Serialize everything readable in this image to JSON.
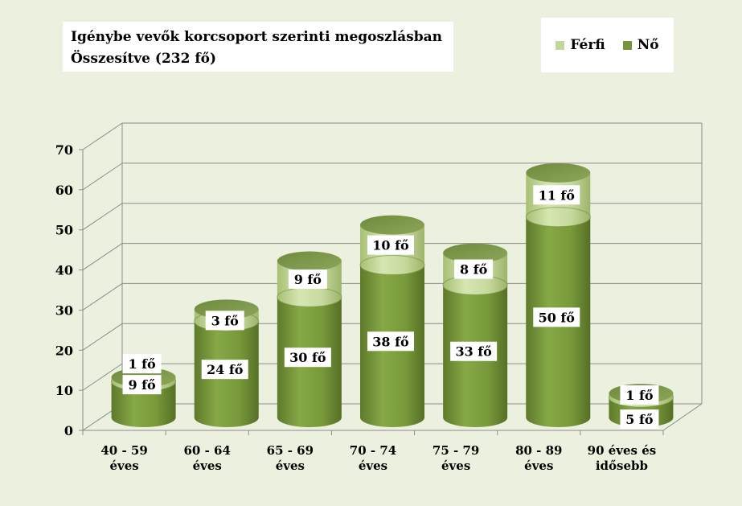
{
  "chart_data": {
    "type": "bar",
    "style": "3d-stacked-cylinder",
    "title_lines": [
      "Igénybe vevők korcsoport szerinti megoszlásban",
      "Összesítve (232 fő)"
    ],
    "categories": [
      [
        "40 - 59",
        "éves"
      ],
      [
        "60 - 64",
        "éves"
      ],
      [
        "65 - 69",
        "éves"
      ],
      [
        "70 - 74",
        "éves"
      ],
      [
        "75 - 79",
        "éves"
      ],
      [
        "80 - 89",
        "éves"
      ],
      [
        "90 éves és",
        "idősebb"
      ]
    ],
    "series": [
      {
        "name": "Nő",
        "values": [
          9,
          24,
          30,
          38,
          33,
          50,
          5
        ],
        "labels": [
          "9 fő",
          "24 fő",
          "30 fő",
          "38 fő",
          "33 fő",
          "50 fő",
          "5 fő"
        ],
        "color": "#77933c"
      },
      {
        "name": "Férfi",
        "values": [
          1,
          3,
          9,
          10,
          8,
          11,
          1
        ],
        "labels": [
          "1 fő",
          "3 fő",
          "9 fő",
          "10 fő",
          "8 fő",
          "11 fő",
          "1 fő"
        ],
        "color": "#c3d69b"
      }
    ],
    "legend": {
      "placement": "top-right",
      "order": [
        "Férfi",
        "Nő"
      ]
    },
    "ylim": [
      0,
      70
    ],
    "yticks": [
      0,
      10,
      20,
      30,
      40,
      50,
      60,
      70
    ],
    "grid": true
  }
}
